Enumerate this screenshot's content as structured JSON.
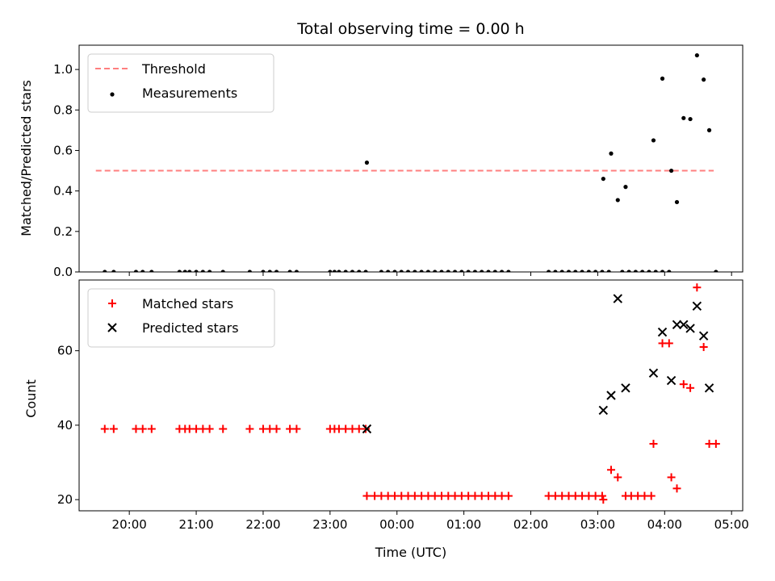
{
  "chart_data": [
    {
      "type": "scatter",
      "title": "Total observing time = 0.00 h",
      "xlabel": "",
      "ylabel": "Matched/Predicted stars",
      "x_unit": "Time (UTC)",
      "xlim": [
        "19:15",
        "05:10"
      ],
      "ylim": [
        0,
        1.12
      ],
      "yticks": [
        0.0,
        0.2,
        0.4,
        0.6,
        0.8,
        1.0
      ],
      "ytick_labels": [
        "0.0",
        "0.2",
        "0.4",
        "0.6",
        "0.8",
        "1.0"
      ],
      "grid": false,
      "legend_position": "top-left",
      "threshold": {
        "name": "Threshold",
        "y": 0.5,
        "x_range": [
          "19:30",
          "04:44"
        ],
        "color": "#ff7f7f",
        "style": "dashed"
      },
      "series": [
        {
          "name": "Measurements",
          "color": "#000000",
          "marker": "dot",
          "points": [
            [
              "19:38",
              0
            ],
            [
              "19:46",
              0
            ],
            [
              "20:06",
              0
            ],
            [
              "20:12",
              0
            ],
            [
              "20:20",
              0
            ],
            [
              "20:45",
              0
            ],
            [
              "20:50",
              0
            ],
            [
              "20:54",
              0
            ],
            [
              "21:00",
              0
            ],
            [
              "21:06",
              0
            ],
            [
              "21:12",
              0
            ],
            [
              "21:24",
              0
            ],
            [
              "21:48",
              0
            ],
            [
              "22:00",
              0
            ],
            [
              "22:06",
              0
            ],
            [
              "22:12",
              0
            ],
            [
              "22:24",
              0
            ],
            [
              "22:30",
              0
            ],
            [
              "23:00",
              0
            ],
            [
              "23:04",
              0
            ],
            [
              "23:08",
              0
            ],
            [
              "23:14",
              0
            ],
            [
              "23:20",
              0
            ],
            [
              "23:26",
              0
            ],
            [
              "23:32",
              0
            ],
            [
              "23:33",
              0.54
            ],
            [
              "23:46",
              0
            ],
            [
              "23:52",
              0
            ],
            [
              "23:58",
              0
            ],
            [
              "00:04",
              0
            ],
            [
              "00:10",
              0
            ],
            [
              "00:16",
              0
            ],
            [
              "00:22",
              0
            ],
            [
              "00:28",
              0
            ],
            [
              "00:34",
              0
            ],
            [
              "00:40",
              0
            ],
            [
              "00:46",
              0
            ],
            [
              "00:52",
              0
            ],
            [
              "00:58",
              0
            ],
            [
              "01:04",
              0
            ],
            [
              "01:10",
              0
            ],
            [
              "01:16",
              0
            ],
            [
              "01:22",
              0
            ],
            [
              "01:28",
              0
            ],
            [
              "01:34",
              0
            ],
            [
              "01:40",
              0
            ],
            [
              "02:16",
              0
            ],
            [
              "02:22",
              0
            ],
            [
              "02:28",
              0
            ],
            [
              "02:34",
              0
            ],
            [
              "02:40",
              0
            ],
            [
              "02:46",
              0
            ],
            [
              "02:52",
              0
            ],
            [
              "02:58",
              0
            ],
            [
              "03:04",
              0
            ],
            [
              "03:10",
              0
            ],
            [
              "03:05",
              0.46
            ],
            [
              "03:12",
              0.585
            ],
            [
              "03:18",
              0.355
            ],
            [
              "03:25",
              0.42
            ],
            [
              "03:22",
              0
            ],
            [
              "03:28",
              0
            ],
            [
              "03:34",
              0
            ],
            [
              "03:40",
              0
            ],
            [
              "03:46",
              0
            ],
            [
              "03:52",
              0
            ],
            [
              "03:58",
              0
            ],
            [
              "03:58",
              0.955
            ],
            [
              "03:50",
              0.65
            ],
            [
              "04:04",
              0.0
            ],
            [
              "04:06",
              0.5
            ],
            [
              "04:11",
              0.345
            ],
            [
              "04:17",
              0.76
            ],
            [
              "04:23",
              0.755
            ],
            [
              "04:29",
              1.07
            ],
            [
              "04:35",
              0.95
            ],
            [
              "04:40",
              0.7
            ],
            [
              "04:46",
              0
            ]
          ]
        }
      ]
    },
    {
      "type": "scatter",
      "title": "",
      "xlabel": "Time (UTC)",
      "ylabel": "Count",
      "xlim": [
        "19:15",
        "05:10"
      ],
      "ylim": [
        17,
        79
      ],
      "yticks": [
        20,
        40,
        60
      ],
      "ytick_labels": [
        "20",
        "40",
        "60"
      ],
      "xticks": [
        "20:00",
        "21:00",
        "22:00",
        "23:00",
        "00:00",
        "01:00",
        "02:00",
        "03:00",
        "04:00",
        "05:00"
      ],
      "grid": false,
      "legend_position": "top-left",
      "series": [
        {
          "name": "Matched stars",
          "color": "#ff0000",
          "marker": "plus",
          "points": [
            [
              "19:38",
              39
            ],
            [
              "19:46",
              39
            ],
            [
              "20:06",
              39
            ],
            [
              "20:12",
              39
            ],
            [
              "20:20",
              39
            ],
            [
              "20:45",
              39
            ],
            [
              "20:50",
              39
            ],
            [
              "20:54",
              39
            ],
            [
              "21:00",
              39
            ],
            [
              "21:06",
              39
            ],
            [
              "21:12",
              39
            ],
            [
              "21:24",
              39
            ],
            [
              "21:48",
              39
            ],
            [
              "22:00",
              39
            ],
            [
              "22:06",
              39
            ],
            [
              "22:12",
              39
            ],
            [
              "22:24",
              39
            ],
            [
              "22:30",
              39
            ],
            [
              "23:00",
              39
            ],
            [
              "23:04",
              39
            ],
            [
              "23:08",
              39
            ],
            [
              "23:14",
              39
            ],
            [
              "23:20",
              39
            ],
            [
              "23:26",
              39
            ],
            [
              "23:32",
              39
            ],
            [
              "23:33",
              21
            ],
            [
              "23:40",
              21
            ],
            [
              "23:46",
              21
            ],
            [
              "23:52",
              21
            ],
            [
              "23:58",
              21
            ],
            [
              "00:04",
              21
            ],
            [
              "00:10",
              21
            ],
            [
              "00:16",
              21
            ],
            [
              "00:22",
              21
            ],
            [
              "00:28",
              21
            ],
            [
              "00:34",
              21
            ],
            [
              "00:40",
              21
            ],
            [
              "00:46",
              21
            ],
            [
              "00:52",
              21
            ],
            [
              "00:58",
              21
            ],
            [
              "01:04",
              21
            ],
            [
              "01:10",
              21
            ],
            [
              "01:16",
              21
            ],
            [
              "01:22",
              21
            ],
            [
              "01:28",
              21
            ],
            [
              "01:34",
              21
            ],
            [
              "01:40",
              21
            ],
            [
              "02:16",
              21
            ],
            [
              "02:22",
              21
            ],
            [
              "02:28",
              21
            ],
            [
              "02:34",
              21
            ],
            [
              "02:40",
              21
            ],
            [
              "02:46",
              21
            ],
            [
              "02:52",
              21
            ],
            [
              "02:58",
              21
            ],
            [
              "03:04",
              21
            ],
            [
              "03:05",
              20
            ],
            [
              "03:12",
              28
            ],
            [
              "03:18",
              26
            ],
            [
              "03:25",
              21
            ],
            [
              "03:30",
              21
            ],
            [
              "03:36",
              21
            ],
            [
              "03:42",
              21
            ],
            [
              "03:48",
              21
            ],
            [
              "03:50",
              35
            ],
            [
              "03:58",
              62
            ],
            [
              "04:04",
              62
            ],
            [
              "04:06",
              26
            ],
            [
              "04:11",
              23
            ],
            [
              "04:17",
              51
            ],
            [
              "04:23",
              50
            ],
            [
              "04:29",
              77
            ],
            [
              "04:35",
              61
            ],
            [
              "04:40",
              35
            ],
            [
              "04:46",
              35
            ]
          ]
        },
        {
          "name": "Predicted stars",
          "color": "#000000",
          "marker": "x",
          "points": [
            [
              "23:33",
              39
            ],
            [
              "03:05",
              44
            ],
            [
              "03:12",
              48
            ],
            [
              "03:18",
              74
            ],
            [
              "03:25",
              50
            ],
            [
              "03:50",
              54
            ],
            [
              "03:58",
              65
            ],
            [
              "04:06",
              52
            ],
            [
              "04:11",
              67
            ],
            [
              "04:17",
              67
            ],
            [
              "04:23",
              66
            ],
            [
              "04:29",
              72
            ],
            [
              "04:35",
              64
            ],
            [
              "04:40",
              50
            ]
          ]
        }
      ]
    }
  ]
}
